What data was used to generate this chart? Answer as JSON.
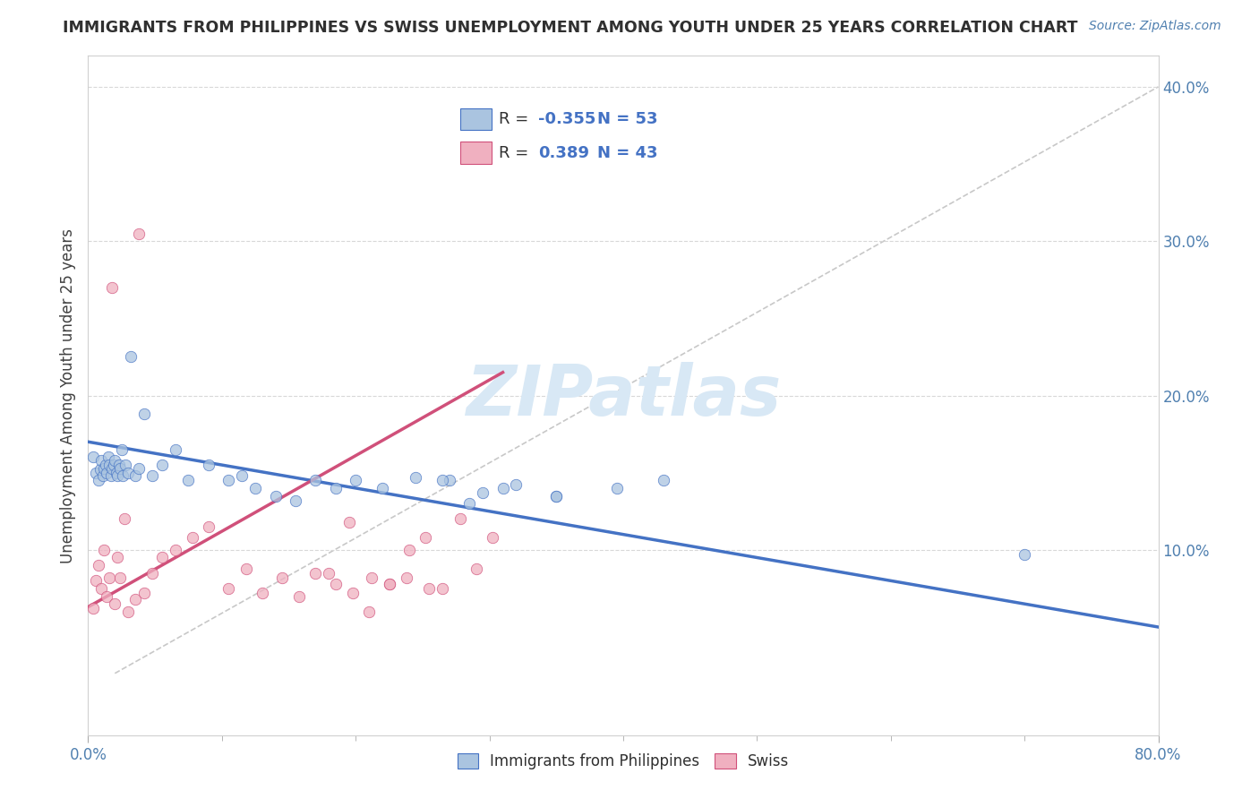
{
  "title": "IMMIGRANTS FROM PHILIPPINES VS SWISS UNEMPLOYMENT AMONG YOUTH UNDER 25 YEARS CORRELATION CHART",
  "source": "Source: ZipAtlas.com",
  "ylabel": "Unemployment Among Youth under 25 years",
  "xlim": [
    0.0,
    0.8
  ],
  "ylim": [
    -0.02,
    0.42
  ],
  "yticks": [
    0.1,
    0.2,
    0.3,
    0.4
  ],
  "yticklabels": [
    "10.0%",
    "20.0%",
    "30.0%",
    "40.0%"
  ],
  "R_blue": -0.355,
  "N_blue": 53,
  "R_pink": 0.389,
  "N_pink": 43,
  "blue_color": "#aac4e0",
  "pink_color": "#f0b0c0",
  "blue_line_color": "#4472c4",
  "pink_line_color": "#d0507a",
  "diag_line_color": "#c8c8c8",
  "legend_R_color": "#4472c4",
  "watermark_color": "#d8e8f5",
  "blue_scatter_x": [
    0.004,
    0.006,
    0.008,
    0.009,
    0.01,
    0.011,
    0.012,
    0.013,
    0.014,
    0.015,
    0.016,
    0.017,
    0.018,
    0.019,
    0.02,
    0.021,
    0.022,
    0.023,
    0.024,
    0.025,
    0.026,
    0.028,
    0.03,
    0.032,
    0.035,
    0.038,
    0.042,
    0.048,
    0.055,
    0.065,
    0.075,
    0.09,
    0.105,
    0.115,
    0.125,
    0.14,
    0.155,
    0.17,
    0.185,
    0.2,
    0.22,
    0.245,
    0.27,
    0.295,
    0.32,
    0.35,
    0.395,
    0.43,
    0.35,
    0.31,
    0.285,
    0.265,
    0.7
  ],
  "blue_scatter_y": [
    0.16,
    0.15,
    0.145,
    0.152,
    0.158,
    0.148,
    0.153,
    0.155,
    0.15,
    0.16,
    0.155,
    0.148,
    0.153,
    0.155,
    0.158,
    0.15,
    0.148,
    0.155,
    0.153,
    0.165,
    0.148,
    0.155,
    0.15,
    0.225,
    0.148,
    0.153,
    0.188,
    0.148,
    0.155,
    0.165,
    0.145,
    0.155,
    0.145,
    0.148,
    0.14,
    0.135,
    0.132,
    0.145,
    0.14,
    0.145,
    0.14,
    0.147,
    0.145,
    0.137,
    0.142,
    0.135,
    0.14,
    0.145,
    0.135,
    0.14,
    0.13,
    0.145,
    0.097
  ],
  "pink_scatter_x": [
    0.004,
    0.006,
    0.008,
    0.01,
    0.012,
    0.014,
    0.016,
    0.018,
    0.02,
    0.022,
    0.024,
    0.027,
    0.03,
    0.035,
    0.038,
    0.042,
    0.048,
    0.055,
    0.065,
    0.078,
    0.09,
    0.105,
    0.118,
    0.13,
    0.145,
    0.158,
    0.17,
    0.185,
    0.198,
    0.212,
    0.225,
    0.238,
    0.252,
    0.265,
    0.278,
    0.29,
    0.302,
    0.255,
    0.24,
    0.225,
    0.21,
    0.195,
    0.18
  ],
  "pink_scatter_y": [
    0.062,
    0.08,
    0.09,
    0.075,
    0.1,
    0.07,
    0.082,
    0.27,
    0.065,
    0.095,
    0.082,
    0.12,
    0.06,
    0.068,
    0.305,
    0.072,
    0.085,
    0.095,
    0.1,
    0.108,
    0.115,
    0.075,
    0.088,
    0.072,
    0.082,
    0.07,
    0.085,
    0.078,
    0.072,
    0.082,
    0.078,
    0.082,
    0.108,
    0.075,
    0.12,
    0.088,
    0.108,
    0.075,
    0.1,
    0.078,
    0.06,
    0.118,
    0.085
  ],
  "blue_trend_x": [
    0.0,
    0.8
  ],
  "blue_trend_y": [
    0.17,
    0.05
  ],
  "pink_trend_x": [
    0.0,
    0.31
  ],
  "pink_trend_y": [
    0.063,
    0.215
  ],
  "diag_line_x": [
    0.02,
    0.8
  ],
  "diag_line_y": [
    0.02,
    0.4
  ]
}
